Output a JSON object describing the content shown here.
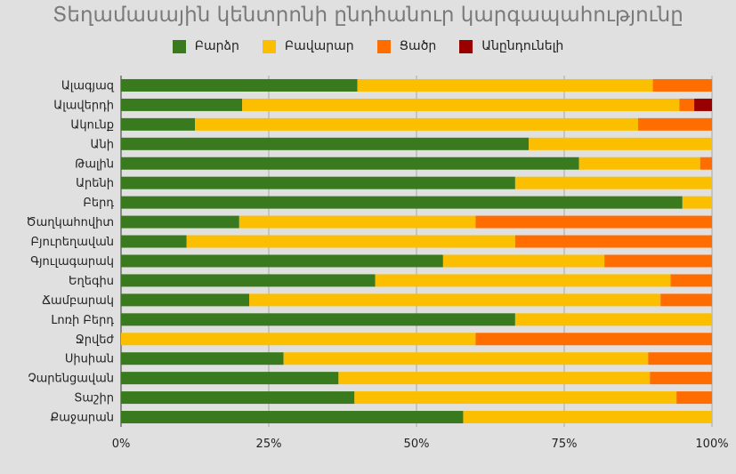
{
  "chart_data": {
    "type": "bar",
    "orientation": "horizontal",
    "stacked": "percent",
    "title": "Տեղամասային կենտրոնի ընդհանուր կարգապահությունը",
    "legend_position": "top",
    "xlim": [
      0,
      100
    ],
    "ticks": [
      "0%",
      "25%",
      "50%",
      "75%",
      "100%"
    ],
    "tick_values": [
      0,
      25,
      50,
      75,
      100
    ],
    "grid": true,
    "categories": [
      "Ալագյազ",
      "Ալավերդի",
      "Ակունք",
      "Անի",
      "Թալին",
      "Արենի",
      "Բերդ",
      "Ծաղկահովիտ",
      "Բյուրեղավան",
      "Գյուլագարակ",
      "Եղեգիս",
      "Ճամբարակ",
      "Լոռի Բերդ",
      "Ջրվեժ",
      "Սիսիան",
      "Չարենցավան",
      "Տաշիր",
      "Քաջարան"
    ],
    "series": [
      {
        "name": "Բարձր",
        "color": "#3a7a1e",
        "values": [
          40,
          20.5,
          12.5,
          69,
          77.5,
          66.7,
          95,
          20,
          11.1,
          54.5,
          43,
          21.7,
          66.7,
          0,
          27.5,
          36.8,
          39.5,
          57.9
        ]
      },
      {
        "name": "Բավարար",
        "color": "#fbbf00",
        "values": [
          50,
          74,
          75,
          31,
          20.5,
          33.3,
          5,
          40,
          55.6,
          27.3,
          50,
          69.6,
          33.3,
          60,
          61.7,
          52.7,
          54.5,
          42.1
        ]
      },
      {
        "name": "Ցածր",
        "color": "#ff6d01",
        "values": [
          10,
          2.5,
          12.5,
          0,
          2,
          0,
          0,
          40,
          33.3,
          18.2,
          7,
          8.7,
          0,
          40,
          10.8,
          10.5,
          6,
          0
        ]
      },
      {
        "name": "Անընդունելի",
        "color": "#990000",
        "values": [
          0,
          3,
          0,
          0,
          0,
          0,
          0,
          0,
          0,
          0,
          0,
          0,
          0,
          0,
          0,
          0,
          0,
          0
        ]
      }
    ]
  }
}
